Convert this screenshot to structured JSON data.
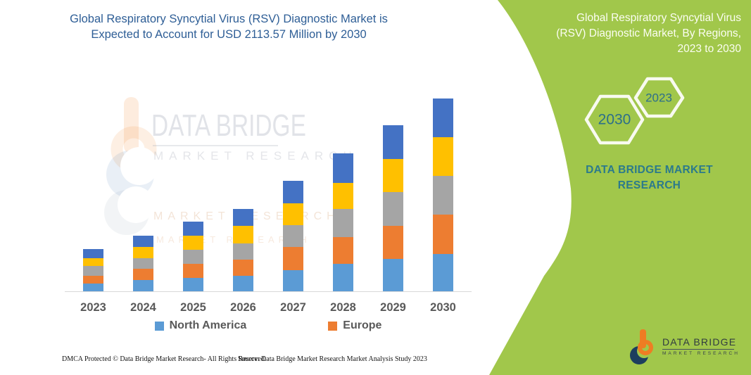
{
  "title": {
    "line1": "Global Respiratory Syncytial Virus (RSV) Diagnostic Market is",
    "line2": "Expected to Account for USD 2113.57 Million by 2030"
  },
  "chart_data": {
    "type": "bar",
    "stacked": true,
    "stack_order": "bottom-to-top",
    "title": "Global Respiratory Syncytial Virus (RSV) Diagnostic Market is Expected to Account for USD 2113.57 Million by 2030",
    "unit": "USD Million",
    "total_2030": 2113.57,
    "categories": [
      "2023",
      "2024",
      "2025",
      "2026",
      "2027",
      "2028",
      "2029",
      "2030"
    ],
    "series": [
      {
        "name": "North America",
        "color": "#5B9BD5",
        "values": [
          92,
          131,
          154,
          177,
          238,
          307,
          361,
          415
        ]
      },
      {
        "name": "Europe",
        "color": "#ED7D31",
        "values": [
          85,
          123,
          154,
          177,
          254,
          292,
          361,
          430
        ]
      },
      {
        "name": "",
        "color": "#A5A5A5",
        "values": [
          108,
          115,
          154,
          177,
          238,
          307,
          369,
          423
        ]
      },
      {
        "name": "",
        "color": "#FFC000",
        "values": [
          85,
          123,
          154,
          192,
          238,
          284,
          361,
          423
        ]
      },
      {
        "name": "",
        "color": "#4472C4",
        "values": [
          100,
          123,
          154,
          185,
          246,
          323,
          369,
          423
        ]
      }
    ],
    "estimation_note": "Only North America and Europe are labeled in the legend; all values estimated from bar heights anchored to the stated USD 2113.57 Million total for 2030.",
    "y_axis_visible": false,
    "grid": false,
    "legend_position": "bottom"
  },
  "legend": [
    {
      "label": "North America",
      "color": "#5B9BD5"
    },
    {
      "label": "Europe",
      "color": "#ED7D31"
    }
  ],
  "watermark": {
    "brand": "DATA BRIDGE",
    "sub": "MARKET RESEARCH"
  },
  "side_panel": {
    "heading_line1": "Global Respiratory Syncytial Virus",
    "heading_line2": "(RSV) Diagnostic Market, By Regions,",
    "heading_line3": "2023 to 2030",
    "hex_large": "2030",
    "hex_small": "2023",
    "brand_line1": "DATA BRIDGE MARKET",
    "brand_line2": "RESEARCH",
    "colors": {
      "panel_green": "#A1C74B",
      "brand_teal": "#2B7A8C",
      "hex_text": "#2C6F8A"
    }
  },
  "logo": {
    "name": "DATA BRIDGE",
    "sub": "MARKET RESEARCH"
  },
  "footer": {
    "left": "DMCA Protected © Data Bridge Market Research-  All Rights Reserved.",
    "right": "Source: Data Bridge Market Research  Market Analysis Study 2023"
  }
}
